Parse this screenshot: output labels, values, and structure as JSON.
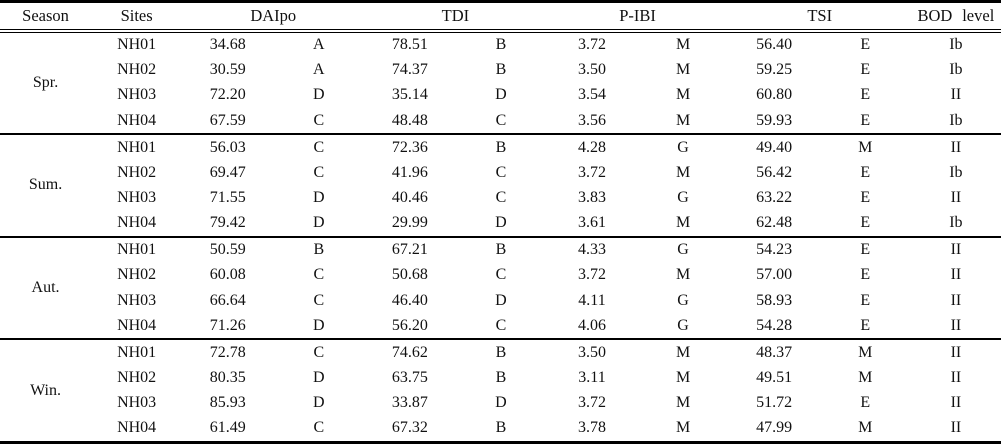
{
  "table": {
    "columns": {
      "season": "Season",
      "sites": "Sites",
      "daipo": "DAIpo",
      "tdi": "TDI",
      "pibi": "P-IBI",
      "tsi": "TSI",
      "bod": "BOD level"
    },
    "groups": [
      {
        "season": "Spr.",
        "rows": [
          {
            "site": "NH01",
            "daipo": "34.68",
            "daipo_grade": "A",
            "tdi": "78.51",
            "tdi_grade": "B",
            "pibi": "3.72",
            "pibi_grade": "M",
            "tsi": "56.40",
            "tsi_grade": "E",
            "bod": "Ib"
          },
          {
            "site": "NH02",
            "daipo": "30.59",
            "daipo_grade": "A",
            "tdi": "74.37",
            "tdi_grade": "B",
            "pibi": "3.50",
            "pibi_grade": "M",
            "tsi": "59.25",
            "tsi_grade": "E",
            "bod": "Ib"
          },
          {
            "site": "NH03",
            "daipo": "72.20",
            "daipo_grade": "D",
            "tdi": "35.14",
            "tdi_grade": "D",
            "pibi": "3.54",
            "pibi_grade": "M",
            "tsi": "60.80",
            "tsi_grade": "E",
            "bod": "II"
          },
          {
            "site": "NH04",
            "daipo": "67.59",
            "daipo_grade": "C",
            "tdi": "48.48",
            "tdi_grade": "C",
            "pibi": "3.56",
            "pibi_grade": "M",
            "tsi": "59.93",
            "tsi_grade": "E",
            "bod": "Ib"
          }
        ]
      },
      {
        "season": "Sum.",
        "rows": [
          {
            "site": "NH01",
            "daipo": "56.03",
            "daipo_grade": "C",
            "tdi": "72.36",
            "tdi_grade": "B",
            "pibi": "4.28",
            "pibi_grade": "G",
            "tsi": "49.40",
            "tsi_grade": "M",
            "bod": "II"
          },
          {
            "site": "NH02",
            "daipo": "69.47",
            "daipo_grade": "C",
            "tdi": "41.96",
            "tdi_grade": "C",
            "pibi": "3.72",
            "pibi_grade": "M",
            "tsi": "56.42",
            "tsi_grade": "E",
            "bod": "Ib"
          },
          {
            "site": "NH03",
            "daipo": "71.55",
            "daipo_grade": "D",
            "tdi": "40.46",
            "tdi_grade": "C",
            "pibi": "3.83",
            "pibi_grade": "G",
            "tsi": "63.22",
            "tsi_grade": "E",
            "bod": "II"
          },
          {
            "site": "NH04",
            "daipo": "79.42",
            "daipo_grade": "D",
            "tdi": "29.99",
            "tdi_grade": "D",
            "pibi": "3.61",
            "pibi_grade": "M",
            "tsi": "62.48",
            "tsi_grade": "E",
            "bod": "Ib"
          }
        ]
      },
      {
        "season": "Aut.",
        "rows": [
          {
            "site": "NH01",
            "daipo": "50.59",
            "daipo_grade": "B",
            "tdi": "67.21",
            "tdi_grade": "B",
            "pibi": "4.33",
            "pibi_grade": "G",
            "tsi": "54.23",
            "tsi_grade": "E",
            "bod": "II"
          },
          {
            "site": "NH02",
            "daipo": "60.08",
            "daipo_grade": "C",
            "tdi": "50.68",
            "tdi_grade": "C",
            "pibi": "3.72",
            "pibi_grade": "M",
            "tsi": "57.00",
            "tsi_grade": "E",
            "bod": "II"
          },
          {
            "site": "NH03",
            "daipo": "66.64",
            "daipo_grade": "C",
            "tdi": "46.40",
            "tdi_grade": "D",
            "pibi": "4.11",
            "pibi_grade": "G",
            "tsi": "58.93",
            "tsi_grade": "E",
            "bod": "II"
          },
          {
            "site": "NH04",
            "daipo": "71.26",
            "daipo_grade": "D",
            "tdi": "56.20",
            "tdi_grade": "C",
            "pibi": "4.06",
            "pibi_grade": "G",
            "tsi": "54.28",
            "tsi_grade": "E",
            "bod": "II"
          }
        ]
      },
      {
        "season": "Win.",
        "rows": [
          {
            "site": "NH01",
            "daipo": "72.78",
            "daipo_grade": "C",
            "tdi": "74.62",
            "tdi_grade": "B",
            "pibi": "3.50",
            "pibi_grade": "M",
            "tsi": "48.37",
            "tsi_grade": "M",
            "bod": "II"
          },
          {
            "site": "NH02",
            "daipo": "80.35",
            "daipo_grade": "D",
            "tdi": "63.75",
            "tdi_grade": "B",
            "pibi": "3.11",
            "pibi_grade": "M",
            "tsi": "49.51",
            "tsi_grade": "M",
            "bod": "II"
          },
          {
            "site": "NH03",
            "daipo": "85.93",
            "daipo_grade": "D",
            "tdi": "33.87",
            "tdi_grade": "D",
            "pibi": "3.72",
            "pibi_grade": "M",
            "tsi": "51.72",
            "tsi_grade": "E",
            "bod": "II"
          },
          {
            "site": "NH04",
            "daipo": "61.49",
            "daipo_grade": "C",
            "tdi": "67.32",
            "tdi_grade": "B",
            "pibi": "3.78",
            "pibi_grade": "M",
            "tsi": "47.99",
            "tsi_grade": "M",
            "bod": "II"
          }
        ]
      }
    ]
  }
}
